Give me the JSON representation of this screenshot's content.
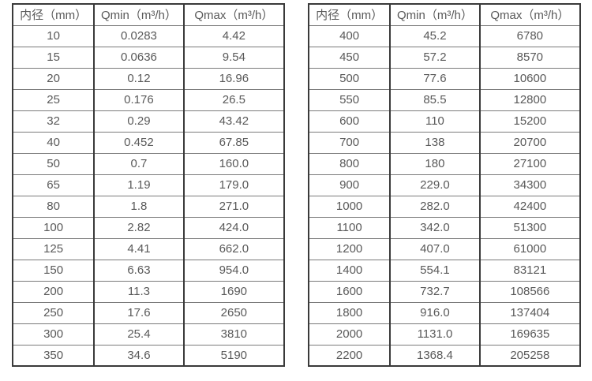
{
  "colors": {
    "text": "#595959",
    "border_vertical": "#3a3a3a",
    "border_horizontal": "#7a7a7a",
    "background": "#ffffff"
  },
  "tables": [
    {
      "name": "flow-table-small-diameters",
      "headers": {
        "diameter": "内径（mm）",
        "qmin": "Qmin（m³/h）",
        "qmax": "Qmax（m³/h）"
      },
      "rows": [
        {
          "dn": "10",
          "qmin": "0.0283",
          "qmax": "4.42"
        },
        {
          "dn": "15",
          "qmin": "0.0636",
          "qmax": "9.54"
        },
        {
          "dn": "20",
          "qmin": "0.12",
          "qmax": "16.96"
        },
        {
          "dn": "25",
          "qmin": "0.176",
          "qmax": "26.5"
        },
        {
          "dn": "32",
          "qmin": "0.29",
          "qmax": "43.42"
        },
        {
          "dn": "40",
          "qmin": "0.452",
          "qmax": "67.85"
        },
        {
          "dn": "50",
          "qmin": "0.7",
          "qmax": "160.0"
        },
        {
          "dn": "65",
          "qmin": "1.19",
          "qmax": "179.0"
        },
        {
          "dn": "80",
          "qmin": "1.8",
          "qmax": "271.0"
        },
        {
          "dn": "100",
          "qmin": "2.82",
          "qmax": "424.0"
        },
        {
          "dn": "125",
          "qmin": "4.41",
          "qmax": "662.0"
        },
        {
          "dn": "150",
          "qmin": "6.63",
          "qmax": "954.0"
        },
        {
          "dn": "200",
          "qmin": "11.3",
          "qmax": "1690"
        },
        {
          "dn": "250",
          "qmin": "17.6",
          "qmax": "2650"
        },
        {
          "dn": "300",
          "qmin": "25.4",
          "qmax": "3810"
        },
        {
          "dn": "350",
          "qmin": "34.6",
          "qmax": "5190"
        }
      ]
    },
    {
      "name": "flow-table-large-diameters",
      "headers": {
        "diameter": "内径（mm）",
        "qmin": "Qmin（m³/h）",
        "qmax": "Qmax（m³/h）"
      },
      "rows": [
        {
          "dn": "400",
          "qmin": "45.2",
          "qmax": "6780"
        },
        {
          "dn": "450",
          "qmin": "57.2",
          "qmax": "8570"
        },
        {
          "dn": "500",
          "qmin": "77.6",
          "qmax": "10600"
        },
        {
          "dn": "550",
          "qmin": "85.5",
          "qmax": "12800"
        },
        {
          "dn": "600",
          "qmin": "110",
          "qmax": "15200"
        },
        {
          "dn": "700",
          "qmin": "138",
          "qmax": "20700"
        },
        {
          "dn": "800",
          "qmin": "180",
          "qmax": "27100"
        },
        {
          "dn": "900",
          "qmin": "229.0",
          "qmax": "34300"
        },
        {
          "dn": "1000",
          "qmin": "282.0",
          "qmax": "42400"
        },
        {
          "dn": "1100",
          "qmin": "342.0",
          "qmax": "51300"
        },
        {
          "dn": "1200",
          "qmin": "407.0",
          "qmax": "61000"
        },
        {
          "dn": "1400",
          "qmin": "554.1",
          "qmax": "83121"
        },
        {
          "dn": "1600",
          "qmin": "732.7",
          "qmax": "108566"
        },
        {
          "dn": "1800",
          "qmin": "916.0",
          "qmax": "137404"
        },
        {
          "dn": "2000",
          "qmin": "1131.0",
          "qmax": "169635"
        },
        {
          "dn": "2200",
          "qmin": "1368.4",
          "qmax": "205258"
        }
      ]
    }
  ]
}
